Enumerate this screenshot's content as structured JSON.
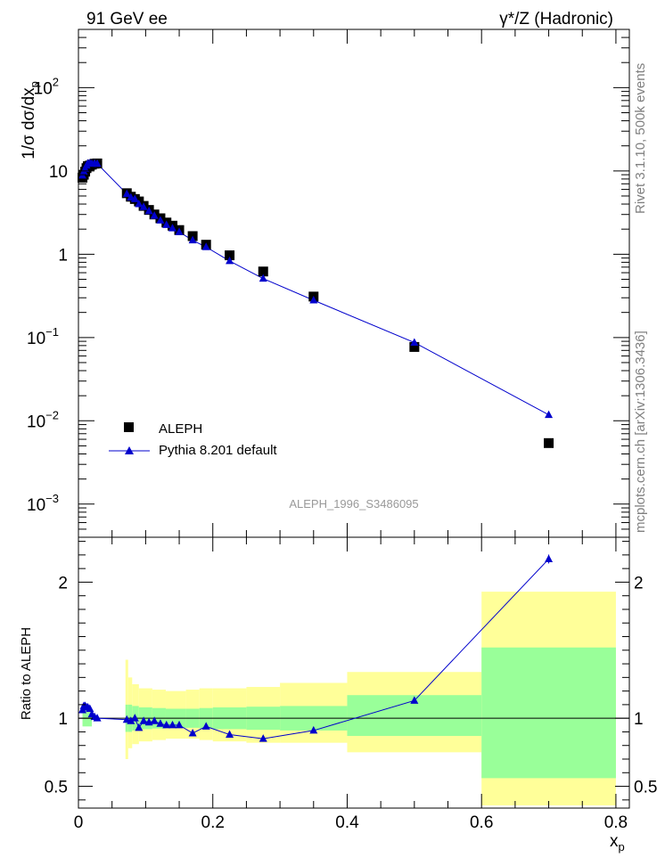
{
  "chart_data": [
    {
      "type": "scatter",
      "panel": "main",
      "title_left": "91 GeV ee",
      "title_right": "γ*/Z (Hadronic)",
      "ylabel": "1/σ dσ/dx",
      "ylabel_sub": "p",
      "yscale": "log",
      "ylim": [
        0.0004,
        500
      ],
      "xlim": [
        0,
        0.82
      ],
      "ytick_labels": [
        {
          "v": 0.001,
          "base": "10",
          "exp": "−3"
        },
        {
          "v": 0.01,
          "base": "10",
          "exp": "−2"
        },
        {
          "v": 0.1,
          "base": "10",
          "exp": "−1"
        },
        {
          "v": 1,
          "base": "1",
          "exp": ""
        },
        {
          "v": 10,
          "base": "10",
          "exp": ""
        },
        {
          "v": 100,
          "base": "10",
          "exp": "2"
        }
      ],
      "series": [
        {
          "name": "ALEPH",
          "marker": "square",
          "color": "#000000",
          "points": [
            [
              0.006,
              8.3
            ],
            [
              0.008,
              9.0
            ],
            [
              0.01,
              9.8
            ],
            [
              0.012,
              10.8
            ],
            [
              0.014,
              11.4
            ],
            [
              0.017,
              11.6
            ],
            [
              0.02,
              11.9
            ],
            [
              0.024,
              12.2
            ],
            [
              0.028,
              12.3
            ],
            [
              0.072,
              5.4
            ],
            [
              0.078,
              4.9
            ],
            [
              0.084,
              4.6
            ],
            [
              0.09,
              4.3
            ],
            [
              0.097,
              3.8
            ],
            [
              0.105,
              3.4
            ],
            [
              0.113,
              3.0
            ],
            [
              0.122,
              2.7
            ],
            [
              0.131,
              2.4
            ],
            [
              0.14,
              2.2
            ],
            [
              0.15,
              1.95
            ],
            [
              0.17,
              1.65
            ],
            [
              0.19,
              1.3
            ],
            [
              0.225,
              0.97
            ],
            [
              0.275,
              0.62
            ],
            [
              0.35,
              0.31
            ],
            [
              0.5,
              0.077
            ],
            [
              0.7,
              0.0054
            ]
          ]
        },
        {
          "name": "Pythia 8.201 default",
          "marker": "triangle",
          "color": "#0000cc",
          "points": [
            [
              0.006,
              8.8
            ],
            [
              0.008,
              9.8
            ],
            [
              0.01,
              10.6
            ],
            [
              0.012,
              11.6
            ],
            [
              0.014,
              12.3
            ],
            [
              0.017,
              12.4
            ],
            [
              0.02,
              12.2
            ],
            [
              0.024,
              12.3
            ],
            [
              0.028,
              12.2
            ],
            [
              0.072,
              5.3
            ],
            [
              0.078,
              4.8
            ],
            [
              0.084,
              4.6
            ],
            [
              0.09,
              4.0
            ],
            [
              0.097,
              3.7
            ],
            [
              0.105,
              3.3
            ],
            [
              0.113,
              2.9
            ],
            [
              0.122,
              2.55
            ],
            [
              0.131,
              2.25
            ],
            [
              0.14,
              2.05
            ],
            [
              0.15,
              1.85
            ],
            [
              0.17,
              1.47
            ],
            [
              0.19,
              1.22
            ],
            [
              0.225,
              0.83
            ],
            [
              0.275,
              0.51
            ],
            [
              0.35,
              0.28
            ],
            [
              0.5,
              0.087
            ],
            [
              0.7,
              0.0118
            ]
          ]
        }
      ],
      "legend": [
        "ALEPH",
        "Pythia 8.201 default"
      ],
      "legend_position": "bottom-left",
      "analysis_label": "ALEPH_1996_S3486095",
      "side_label_1": "Rivet 3.1.10,  500k events",
      "side_label_2": "mcplots.cern.ch [arXiv:1306.3436]"
    },
    {
      "type": "scatter",
      "panel": "ratio",
      "ylabel": "Ratio to ALEPH",
      "xlabel": "x",
      "xlabel_sub": "p",
      "xlim": [
        0,
        0.82
      ],
      "ylim": [
        0.34,
        2.33
      ],
      "xticks": [
        0,
        0.2,
        0.4,
        0.6,
        0.8
      ],
      "xtick_labels": [
        "0",
        "0.2",
        "0.4",
        "0.6",
        "0.8"
      ],
      "yticks": [
        0.5,
        1,
        2
      ],
      "ytick_labels": [
        "0.5",
        "1",
        "2"
      ],
      "bands": [
        {
          "x0": 0.07,
          "x1": 0.074,
          "y_lo": 0.9,
          "y_hi": 1.1,
          "y2_lo": 0.7,
          "y2_hi": 1.43
        },
        {
          "x0": 0.074,
          "x1": 0.08,
          "y_lo": 0.9,
          "y_hi": 1.1,
          "y2_lo": 0.78,
          "y2_hi": 1.3
        },
        {
          "x0": 0.08,
          "x1": 0.09,
          "y_lo": 0.91,
          "y_hi": 1.09,
          "y2_lo": 0.81,
          "y2_hi": 1.25
        },
        {
          "x0": 0.09,
          "x1": 0.11,
          "y_lo": 0.92,
          "y_hi": 1.08,
          "y2_lo": 0.83,
          "y2_hi": 1.22
        },
        {
          "x0": 0.11,
          "x1": 0.13,
          "y_lo": 0.925,
          "y_hi": 1.075,
          "y2_lo": 0.84,
          "y2_hi": 1.21
        },
        {
          "x0": 0.13,
          "x1": 0.16,
          "y_lo": 0.93,
          "y_hi": 1.07,
          "y2_lo": 0.85,
          "y2_hi": 1.2
        },
        {
          "x0": 0.16,
          "x1": 0.18,
          "y_lo": 0.93,
          "y_hi": 1.07,
          "y2_lo": 0.85,
          "y2_hi": 1.21
        },
        {
          "x0": 0.18,
          "x1": 0.2,
          "y_lo": 0.925,
          "y_hi": 1.075,
          "y2_lo": 0.84,
          "y2_hi": 1.22
        },
        {
          "x0": 0.2,
          "x1": 0.25,
          "y_lo": 0.92,
          "y_hi": 1.08,
          "y2_lo": 0.83,
          "y2_hi": 1.22
        },
        {
          "x0": 0.25,
          "x1": 0.3,
          "y_lo": 0.915,
          "y_hi": 1.085,
          "y2_lo": 0.82,
          "y2_hi": 1.23
        },
        {
          "x0": 0.3,
          "x1": 0.4,
          "y_lo": 0.91,
          "y_hi": 1.09,
          "y2_lo": 0.82,
          "y2_hi": 1.26
        },
        {
          "x0": 0.4,
          "x1": 0.6,
          "y_lo": 0.87,
          "y_hi": 1.17,
          "y2_lo": 0.75,
          "y2_hi": 1.34
        },
        {
          "x0": 0.6,
          "x1": 0.8,
          "y_lo": 0.56,
          "y_hi": 1.52,
          "y2_lo": 0.36,
          "y2_hi": 1.93
        }
      ],
      "early_bars": [
        {
          "x0": 0.006,
          "x1": 0.02,
          "y_lo": 0.94,
          "y_hi": 1.06
        }
      ],
      "ratio_points": [
        [
          0.006,
          1.06
        ],
        [
          0.008,
          1.09
        ],
        [
          0.01,
          1.09
        ],
        [
          0.012,
          1.08
        ],
        [
          0.014,
          1.08
        ],
        [
          0.017,
          1.07
        ],
        [
          0.02,
          1.03
        ],
        [
          0.024,
          1.01
        ],
        [
          0.028,
          1.0
        ],
        [
          0.072,
          0.99
        ],
        [
          0.078,
          0.98
        ],
        [
          0.084,
          1.0
        ],
        [
          0.09,
          0.93
        ],
        [
          0.097,
          0.98
        ],
        [
          0.105,
          0.97
        ],
        [
          0.113,
          0.98
        ],
        [
          0.122,
          0.96
        ],
        [
          0.131,
          0.95
        ],
        [
          0.14,
          0.95
        ],
        [
          0.15,
          0.95
        ],
        [
          0.17,
          0.89
        ],
        [
          0.19,
          0.94
        ],
        [
          0.225,
          0.88
        ],
        [
          0.275,
          0.85
        ],
        [
          0.35,
          0.91
        ],
        [
          0.5,
          1.13
        ],
        [
          0.7,
          2.17
        ]
      ],
      "reference_line": 1
    }
  ]
}
